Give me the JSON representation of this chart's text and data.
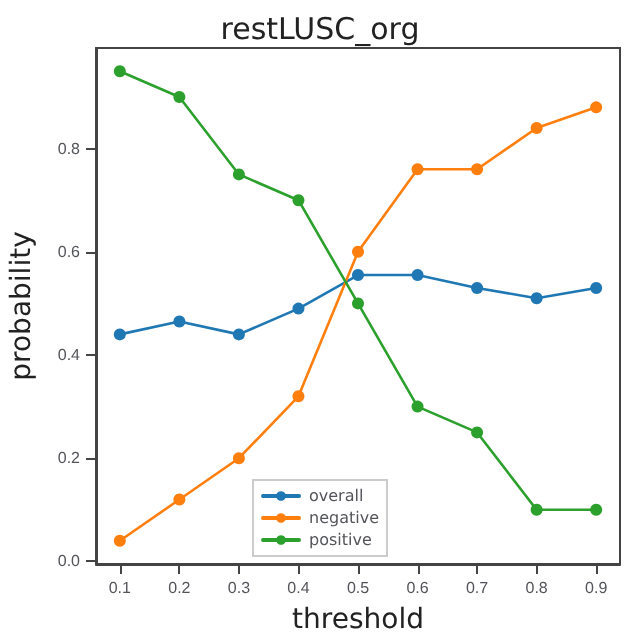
{
  "chart_data": {
    "type": "line",
    "title": "restLUSC_org",
    "xlabel": "threshold",
    "ylabel": "probability",
    "x": [
      0.1,
      0.2,
      0.3,
      0.4,
      0.5,
      0.6,
      0.7,
      0.8,
      0.9
    ],
    "series": [
      {
        "name": "overall",
        "color": "#1f77b4",
        "values": [
          0.44,
          0.465,
          0.44,
          0.49,
          0.555,
          0.555,
          0.53,
          0.51,
          0.53
        ]
      },
      {
        "name": "negative",
        "color": "#ff7f0e",
        "values": [
          0.04,
          0.12,
          0.2,
          0.32,
          0.6,
          0.76,
          0.76,
          0.84,
          0.88
        ]
      },
      {
        "name": "positive",
        "color": "#2ca02c",
        "values": [
          0.95,
          0.9,
          0.75,
          0.7,
          0.5,
          0.3,
          0.25,
          0.1,
          0.1
        ]
      }
    ],
    "xlim": [
      0.06,
      0.94
    ],
    "xticks": [
      0.1,
      0.2,
      0.3,
      0.4,
      0.5,
      0.6,
      0.7,
      0.8,
      0.9
    ],
    "ylim": [
      -0.005,
      0.995
    ],
    "yticks": [
      {
        "value": 0,
        "label": "0.0"
      },
      0.2,
      0.4,
      0.6,
      0.8
    ],
    "marker": "circle",
    "line_style": "solid",
    "legend": "bottom",
    "grid": false
  }
}
